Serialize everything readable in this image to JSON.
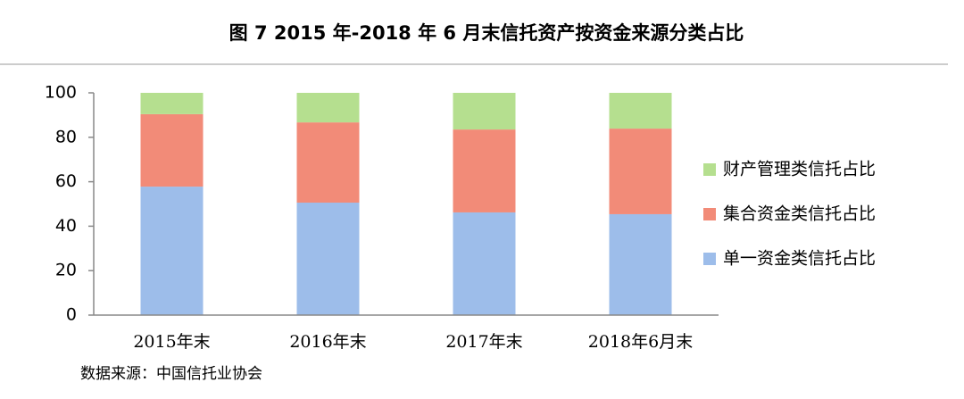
{
  "chart_data": {
    "type": "stacked_bar",
    "title": "图 7 2015 年-2018 年 6 月末信托资产按资金来源分类占比",
    "categories": [
      "2015年末",
      "2016年末",
      "2017年末",
      "2018年6月末"
    ],
    "series": [
      {
        "name": "单一资金类信托占比",
        "color": "#9dbdea",
        "values": [
          57.8,
          50.6,
          46.2,
          45.4
        ]
      },
      {
        "name": "集合资金类信托占比",
        "color": "#f28b78",
        "values": [
          32.6,
          36.1,
          37.3,
          38.5
        ]
      },
      {
        "name": "财产管理类信托占比",
        "color": "#b5df8f",
        "values": [
          9.6,
          13.3,
          16.5,
          16.1
        ]
      }
    ],
    "ylim": [
      0,
      100
    ],
    "yticks": [
      0,
      20,
      40,
      60,
      80,
      100
    ],
    "grid": false,
    "legend": "right",
    "source": "数据来源：中国信托业协会"
  }
}
